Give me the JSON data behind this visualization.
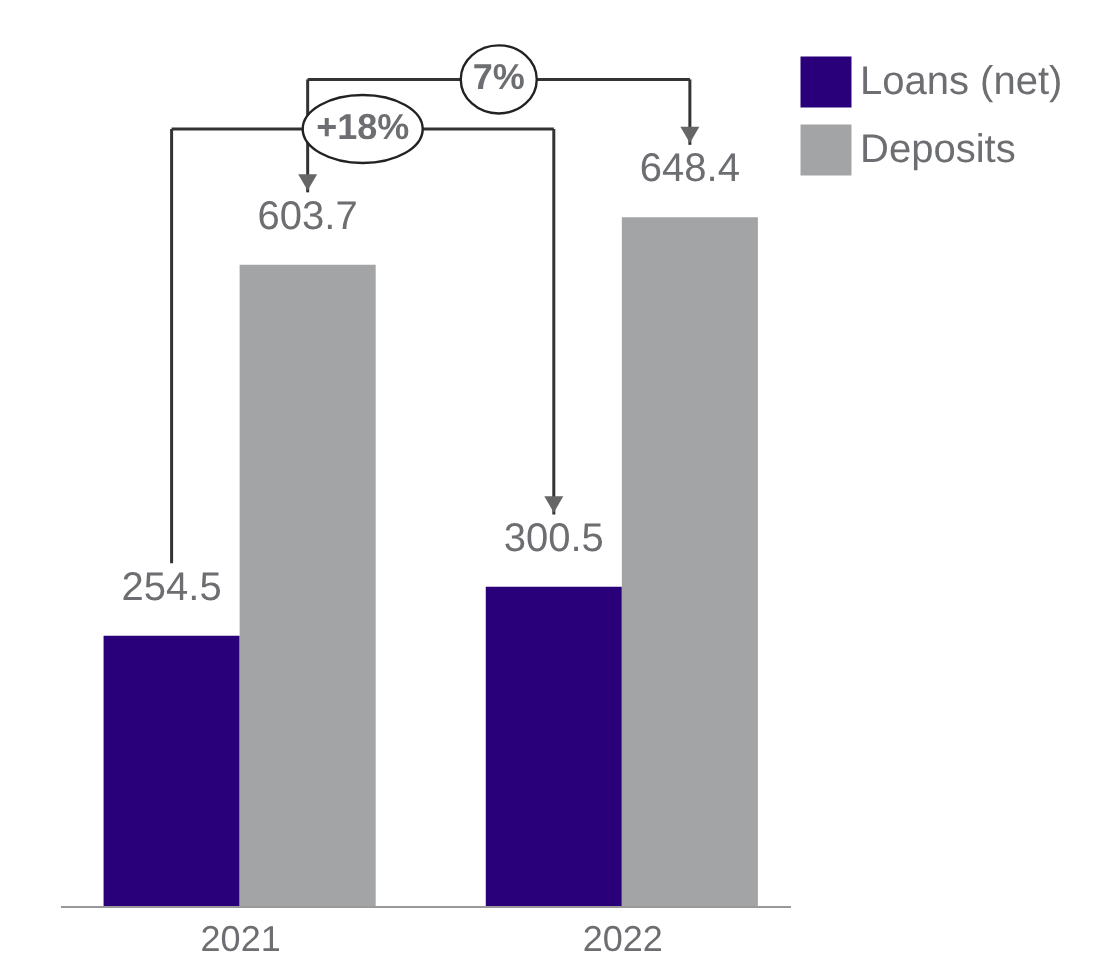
{
  "chart_data": {
    "type": "bar",
    "categories": [
      "2021",
      "2022"
    ],
    "series": [
      {
        "name": "Loans (net)",
        "color": "#29007a",
        "values": [
          254.5,
          300.5
        ]
      },
      {
        "name": "Deposits",
        "color": "#a3a4a6",
        "values": [
          603.7,
          648.4
        ]
      }
    ],
    "annotations": [
      "+18%",
      "7%"
    ],
    "data_labels": true,
    "legend": "right",
    "grid": false
  }
}
